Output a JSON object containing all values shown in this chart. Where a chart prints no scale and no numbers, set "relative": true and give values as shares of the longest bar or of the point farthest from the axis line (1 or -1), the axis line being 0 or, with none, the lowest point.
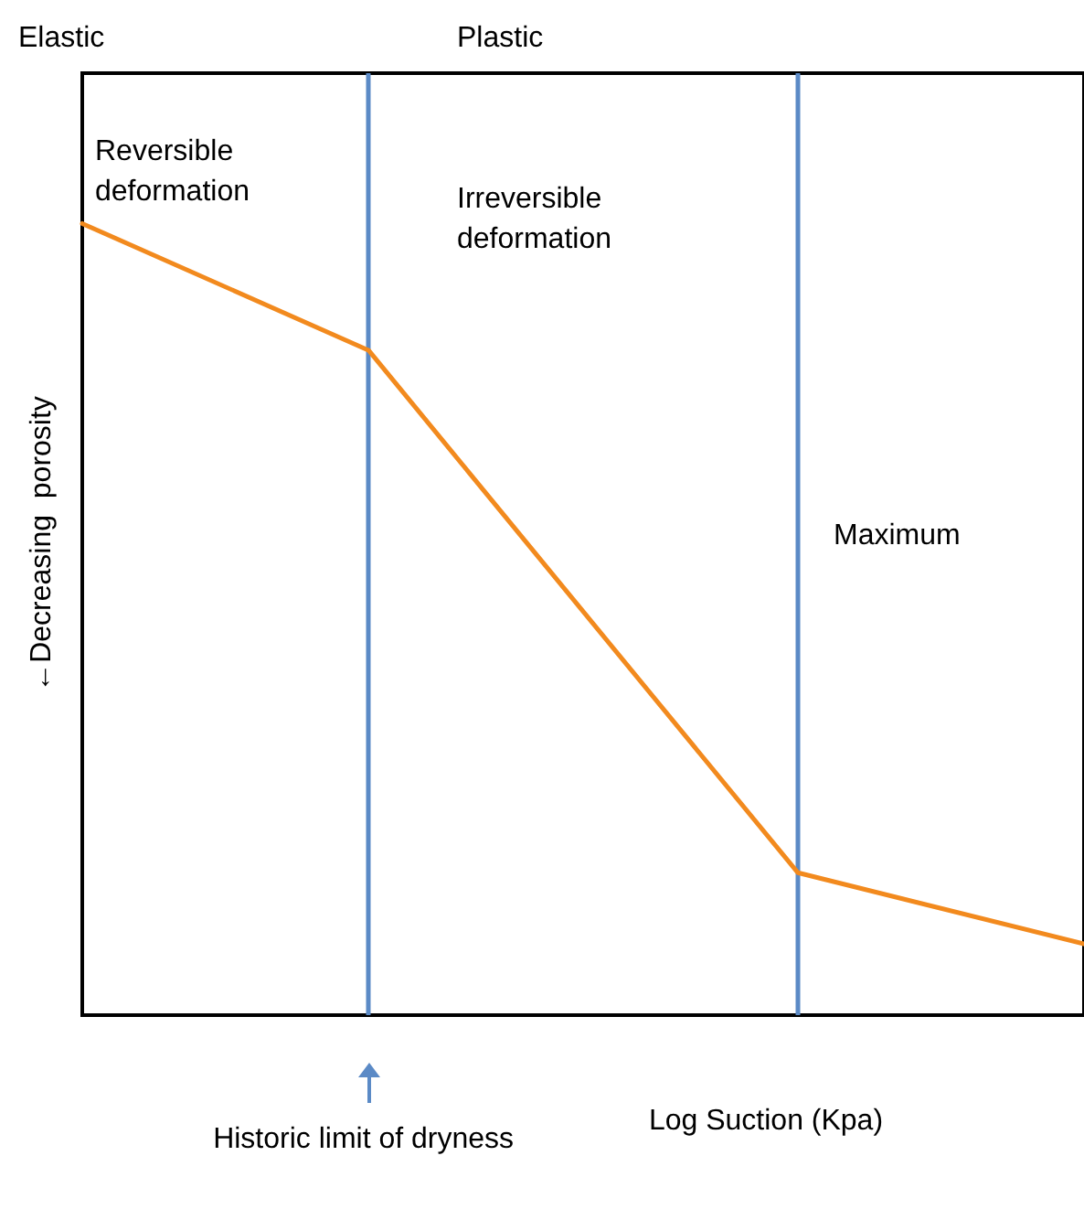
{
  "chart_data": {
    "type": "line",
    "relative": true,
    "xlabel": "Log Suction (Kpa)",
    "ylabel": "←Decreasing  porosity",
    "categories": [
      null,
      null,
      null,
      null,
      null,
      null,
      null,
      null
    ],
    "tick_labels": false,
    "grid": false,
    "marker": "none",
    "line_style": "solid",
    "series": [
      {
        "color": "#f28a1e",
        "values": [
          1,
          null,
          0.84,
          null,
          null,
          0.18,
          null,
          0.09
        ]
      }
    ],
    "annotations": [
      "Elastic",
      "Plastic",
      "Reversible deformation",
      "Irreversible deformation",
      "Maximum",
      "Historic limit of dryness"
    ]
  }
}
